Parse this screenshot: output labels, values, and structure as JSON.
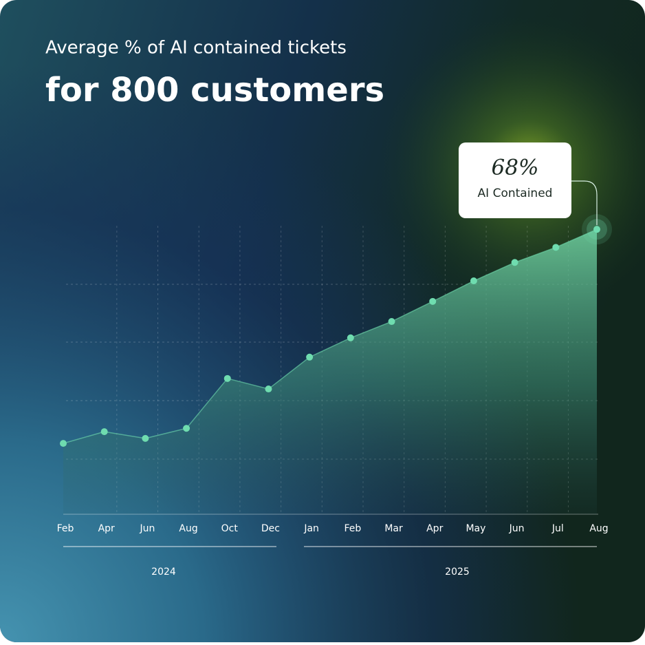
{
  "chart_data": {
    "type": "area",
    "title": "Average % of AI contained tickets",
    "subtitle": "for 800 customers",
    "categories": [
      "Feb",
      "Apr",
      "Jun",
      "Aug",
      "Oct",
      "Dec",
      "Jan",
      "Feb",
      "Mar",
      "Apr",
      "May",
      "Jun",
      "Jul",
      "Aug"
    ],
    "groups": [
      "2024",
      "2025"
    ],
    "values": [
      16.9,
      19.7,
      18.1,
      20.5,
      32.4,
      29.9,
      37.5,
      42.1,
      46.0,
      50.8,
      55.7,
      60.1,
      63.7,
      68
    ],
    "value_labels": [
      null,
      null,
      null,
      null,
      null,
      null,
      null,
      null,
      null,
      null,
      null,
      null,
      null,
      "68%"
    ],
    "annotation": "AI Contained",
    "color": "#6fdcaf",
    "ylim": [
      0,
      70
    ],
    "grid": true
  }
}
